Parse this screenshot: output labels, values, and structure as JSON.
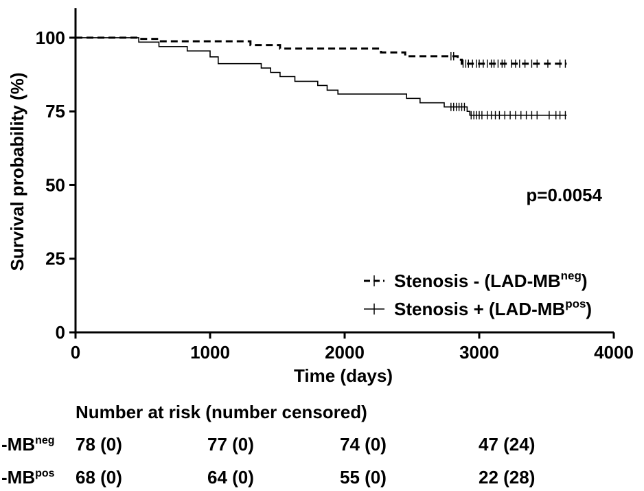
{
  "chart_data": {
    "type": "line",
    "subtype": "kaplan-meier",
    "xlabel": "Time (days)",
    "ylabel": "Survival probability (%)",
    "xlim": [
      0,
      4000
    ],
    "ylim": [
      0,
      110
    ],
    "xticks": [
      0,
      1000,
      2000,
      3000,
      4000
    ],
    "yticks": [
      0,
      25,
      50,
      75,
      100
    ],
    "grid": false,
    "annotation": "p=0.0054",
    "legend_position": "bottom-right",
    "series": [
      {
        "name": "Stenosis - (LAD-MB",
        "name_sup": "neg",
        "name_suffix": ")",
        "line_style": "dashed",
        "color": "#000000",
        "steps": [
          [
            0,
            100
          ],
          [
            470,
            100
          ],
          [
            470,
            99.6
          ],
          [
            620,
            99.6
          ],
          [
            620,
            98.8
          ],
          [
            1300,
            98.8
          ],
          [
            1300,
            97.5
          ],
          [
            1520,
            97.5
          ],
          [
            1520,
            96.3
          ],
          [
            2270,
            96.3
          ],
          [
            2270,
            95
          ],
          [
            2450,
            95
          ],
          [
            2450,
            93.7
          ],
          [
            2840,
            93.7
          ],
          [
            2840,
            92.5
          ],
          [
            2870,
            92.5
          ],
          [
            2870,
            91.2
          ],
          [
            3650,
            91.2
          ]
        ],
        "censor_times": [
          2790,
          2810,
          2880,
          2900,
          2920,
          2950,
          2980,
          3000,
          3030,
          3060,
          3090,
          3110,
          3140,
          3170,
          3190,
          3240,
          3270,
          3300,
          3340,
          3390,
          3430,
          3510,
          3600,
          3640
        ]
      },
      {
        "name": "Stenosis + (LAD-MB",
        "name_sup": "pos",
        "name_suffix": ")",
        "line_style": "solid",
        "color": "#000000",
        "steps": [
          [
            0,
            100
          ],
          [
            470,
            100
          ],
          [
            470,
            98.5
          ],
          [
            620,
            98.5
          ],
          [
            620,
            97
          ],
          [
            830,
            97
          ],
          [
            830,
            95.5
          ],
          [
            1000,
            95.5
          ],
          [
            1000,
            93.5
          ],
          [
            1060,
            93.5
          ],
          [
            1060,
            91.2
          ],
          [
            1380,
            91.2
          ],
          [
            1380,
            89.7
          ],
          [
            1450,
            89.7
          ],
          [
            1450,
            88.2
          ],
          [
            1520,
            88.2
          ],
          [
            1520,
            86.8
          ],
          [
            1630,
            86.8
          ],
          [
            1630,
            85.2
          ],
          [
            1800,
            85.2
          ],
          [
            1800,
            83.8
          ],
          [
            1870,
            83.8
          ],
          [
            1870,
            82.2
          ],
          [
            1950,
            82.2
          ],
          [
            1950,
            80.9
          ],
          [
            2460,
            80.9
          ],
          [
            2460,
            79.4
          ],
          [
            2560,
            79.4
          ],
          [
            2560,
            77.9
          ],
          [
            2740,
            77.9
          ],
          [
            2740,
            76.5
          ],
          [
            2910,
            76.5
          ],
          [
            2910,
            75
          ],
          [
            2930,
            75
          ],
          [
            2930,
            73.7
          ],
          [
            3650,
            73.7
          ]
        ],
        "censor_times": [
          2790,
          2810,
          2830,
          2850,
          2870,
          2890,
          2940,
          2960,
          2980,
          3000,
          3020,
          3060,
          3090,
          3120,
          3150,
          3190,
          3230,
          3270,
          3310,
          3350,
          3390,
          3430,
          3520,
          3570,
          3600,
          3640
        ]
      }
    ]
  },
  "risk_table": {
    "title": "Number at risk (number censored)",
    "rows": [
      {
        "label": "-MB",
        "label_sup": "neg",
        "cells": [
          "78 (0)",
          "77 (0)",
          "74 (0)",
          "47 (24)"
        ]
      },
      {
        "label": "-MB",
        "label_sup": "pos",
        "cells": [
          "68 (0)",
          "64 (0)",
          "55 (0)",
          "22 (28)"
        ]
      }
    ]
  }
}
